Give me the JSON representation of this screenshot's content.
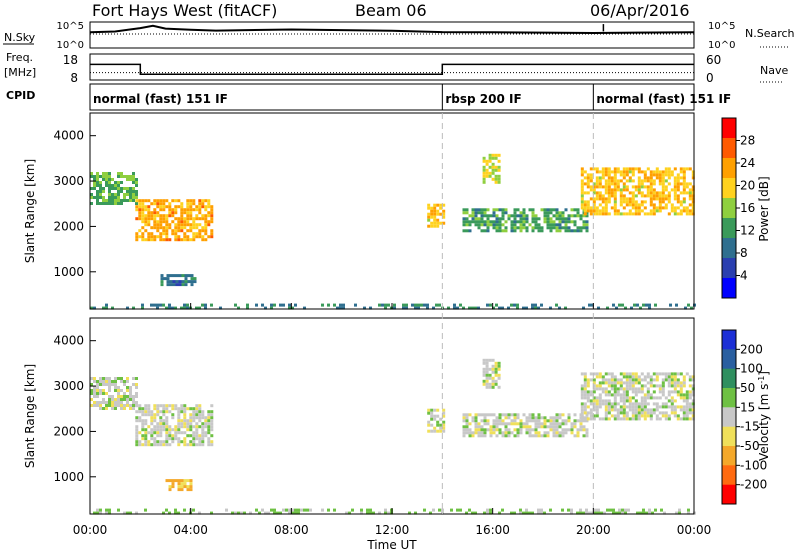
{
  "header": {
    "station": "Fort Hays West (fitACF)",
    "beam": "Beam 06",
    "date": "06/Apr/2016"
  },
  "top_panels": {
    "nsky_label": "N.Sky",
    "nsky_top_tick": "10^5",
    "nsky_bottom_tick": "10^0",
    "nsearch_label": "N.Search",
    "nsearch_top_tick": "10^5",
    "nsearch_bottom_tick": "10^0",
    "freq_label": "Freq.",
    "freq_unit": "[MHz]",
    "freq_top_tick": "18",
    "freq_bottom_tick": "8",
    "nave_label": "Nave",
    "nave_top_tick": "60",
    "nave_bottom_tick": "0",
    "cpid_label": "CPID",
    "cpid_segments": [
      {
        "label": "normal (fast) 151 IF",
        "start_h": 0,
        "end_h": 14.0
      },
      {
        "label": "rbsp 200 IF",
        "start_h": 14.0,
        "end_h": 20.0
      },
      {
        "label": "normal (fast) 151 IF",
        "start_h": 20.0,
        "end_h": 24.0
      }
    ]
  },
  "power_panel": {
    "ylabel": "Slant Range [km]",
    "yticks": [
      "1000",
      "2000",
      "3000",
      "4000"
    ],
    "colorbar_label": "Power [dB]",
    "colorbar_ticks": [
      "4",
      "8",
      "12",
      "16",
      "20",
      "24",
      "28"
    ]
  },
  "velocity_panel": {
    "ylabel": "Slant Range [km]",
    "yticks": [
      "1000",
      "2000",
      "3000",
      "4000"
    ],
    "colorbar_label": "Velocity [m s",
    "colorbar_sup": "-1",
    "colorbar_label_end": "]",
    "colorbar_ticks": [
      "200",
      "100",
      "50",
      "15",
      "-15",
      "-50",
      "-100",
      "-200"
    ]
  },
  "xaxis": {
    "label": "Time UT",
    "ticks": [
      "00:00",
      "04:00",
      "08:00",
      "12:00",
      "16:00",
      "20:00",
      "00:00"
    ]
  },
  "colors": {
    "power_scale": [
      "#0000ff",
      "#2a3fb0",
      "#2f6f8f",
      "#3a9a5a",
      "#8fcf3f",
      "#ffd21f",
      "#ffa000",
      "#ff5a00",
      "#ff0000"
    ],
    "velocity_scale": [
      "#1c2fd6",
      "#2a5fa0",
      "#2f8f5f",
      "#6ec043",
      "#c8c8c8",
      "#f0e05a",
      "#f4a82a",
      "#ff6a10",
      "#ff0000"
    ]
  },
  "chart_data": [
    {
      "type": "line",
      "title": "N.Sky / N.Search",
      "x_unit": "hours UT",
      "series": [
        {
          "name": "N.Sky",
          "style": "solid",
          "x": [
            0,
            1,
            2,
            2.5,
            3,
            4,
            5,
            8,
            12,
            14,
            16,
            20,
            24
          ],
          "y_log10": [
            3.0,
            3.2,
            3.8,
            4.2,
            3.7,
            3.5,
            3.4,
            3.5,
            3.3,
            3.0,
            3.0,
            2.9,
            3.0
          ]
        },
        {
          "name": "N.Search",
          "style": "dotted",
          "x": [
            0,
            4,
            8,
            12,
            16,
            20,
            24
          ],
          "y_log10": [
            2.7,
            2.7,
            2.7,
            2.7,
            2.7,
            2.7,
            2.7
          ]
        }
      ],
      "ylim_log10": [
        0,
        5
      ]
    },
    {
      "type": "line",
      "title": "Freq. / Nave",
      "series": [
        {
          "name": "Freq.",
          "unit": "MHz",
          "x": [
            0,
            2.0,
            2.0,
            14.0,
            14.0,
            24
          ],
          "y": [
            14.0,
            14.0,
            10.2,
            10.2,
            14.0,
            14.0
          ]
        },
        {
          "name": "Nave",
          "style": "dotted",
          "x": [
            0,
            2.0,
            14.0,
            24
          ],
          "y": [
            17,
            17,
            17,
            17
          ]
        }
      ],
      "ylim_freq": [
        8,
        18
      ],
      "ylim_nave": [
        0,
        60
      ]
    },
    {
      "type": "heatmap",
      "title": "Power",
      "x_unit": "hours UT",
      "y_unit": "km",
      "xlim": [
        0,
        24
      ],
      "ylim": [
        180,
        4500
      ],
      "clim": [
        0,
        30
      ],
      "regions": [
        {
          "t0": 0.0,
          "t1": 1.9,
          "r0": 2500,
          "r1": 3200,
          "value": 13
        },
        {
          "t0": 1.8,
          "t1": 4.8,
          "r0": 1700,
          "r1": 2600,
          "value": 21
        },
        {
          "t0": 2.8,
          "t1": 4.2,
          "r0": 700,
          "r1": 950,
          "value": 9
        },
        {
          "t0": 13.4,
          "t1": 14.1,
          "r0": 2000,
          "r1": 2500,
          "value": 19
        },
        {
          "t0": 14.8,
          "t1": 19.8,
          "r0": 1900,
          "r1": 2400,
          "value": 12
        },
        {
          "t0": 15.6,
          "t1": 16.3,
          "r0": 3000,
          "r1": 3600,
          "value": 17
        },
        {
          "t0": 19.5,
          "t1": 24.0,
          "r0": 2300,
          "r1": 3300,
          "value": 19
        },
        {
          "t0": 0.0,
          "t1": 24.0,
          "r0": 200,
          "r1": 300,
          "value": 10
        }
      ]
    },
    {
      "type": "heatmap",
      "title": "Velocity",
      "x_unit": "hours UT",
      "y_unit": "km",
      "xlim": [
        0,
        24
      ],
      "ylim": [
        180,
        4500
      ],
      "clim": [
        -200,
        200
      ],
      "regions": [
        {
          "t0": 0.0,
          "t1": 1.9,
          "r0": 2500,
          "r1": 3200,
          "value": 0
        },
        {
          "t0": 1.8,
          "t1": 4.8,
          "r0": 1700,
          "r1": 2600,
          "value": 0
        },
        {
          "t0": 3.0,
          "t1": 4.0,
          "r0": 700,
          "r1": 950,
          "value": -60
        },
        {
          "t0": 13.4,
          "t1": 14.1,
          "r0": 2000,
          "r1": 2500,
          "value": 0
        },
        {
          "t0": 14.8,
          "t1": 19.8,
          "r0": 1900,
          "r1": 2400,
          "value": 0
        },
        {
          "t0": 15.6,
          "t1": 16.3,
          "r0": 3000,
          "r1": 3600,
          "value": 0
        },
        {
          "t0": 19.5,
          "t1": 24.0,
          "r0": 2300,
          "r1": 3300,
          "value": 0
        },
        {
          "t0": 0.0,
          "t1": 24.0,
          "r0": 200,
          "r1": 300,
          "value": 30
        }
      ]
    }
  ]
}
